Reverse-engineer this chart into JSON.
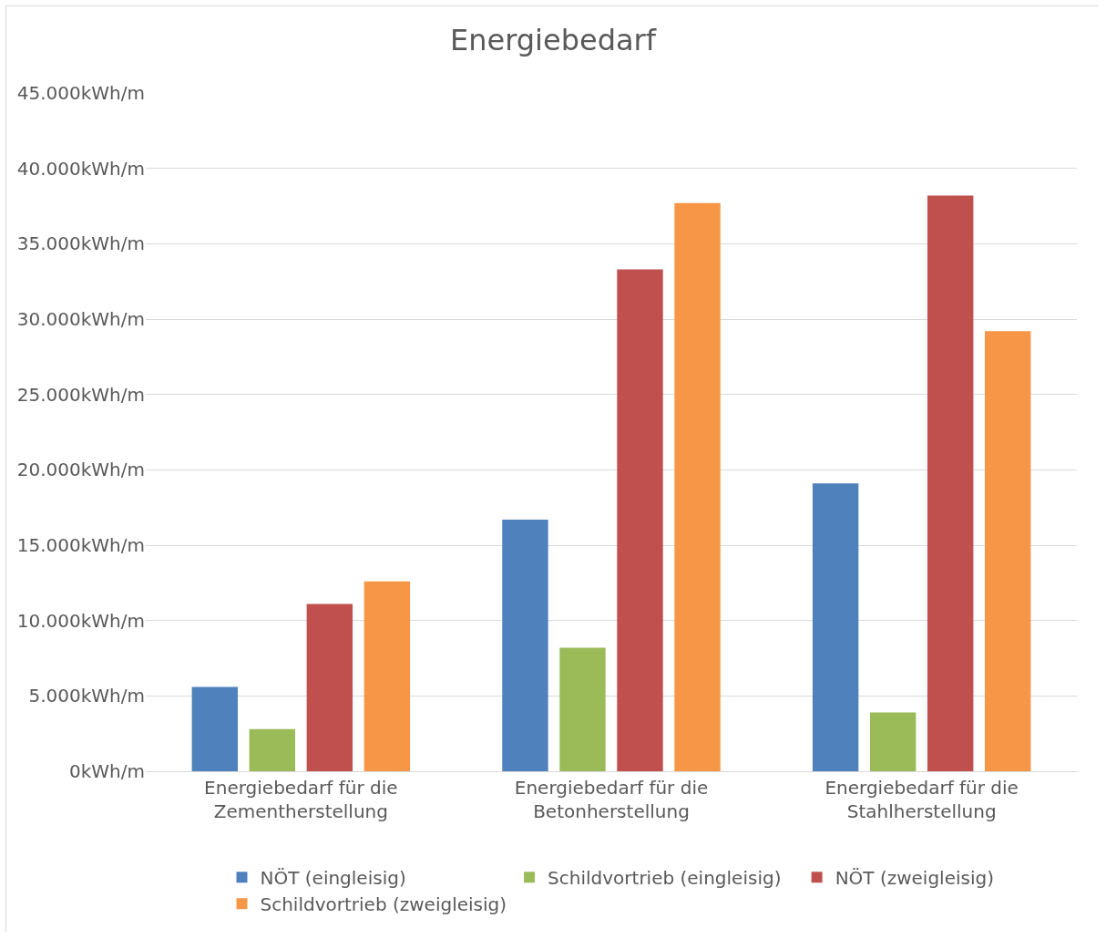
{
  "chart_data": {
    "type": "bar",
    "title": "Energiebedarf",
    "categories": [
      "Energiebedarf für die Zementherstellung",
      "Energiebedarf für die Betonherstellung",
      "Energiebedarf für die Stahlherstellung"
    ],
    "series": [
      {
        "name": "NÖT (eingleisig)",
        "color": "#4f81bd",
        "values": [
          5600,
          16700,
          19100
        ]
      },
      {
        "name": "Schildvortrieb (eingleisig)",
        "color": "#9bbb59",
        "values": [
          2800,
          8200,
          3900
        ]
      },
      {
        "name": "NÖT (zweigleisig)",
        "color": "#c0504d",
        "values": [
          11100,
          33300,
          38200
        ]
      },
      {
        "name": "Schildvortrieb (zweigleisig)",
        "color": "#f79646",
        "values": [
          12600,
          37700,
          29200
        ]
      }
    ],
    "ylim": [
      0,
      45000
    ],
    "yticks": [
      {
        "value": 0,
        "label": "0kWh/m"
      },
      {
        "value": 5000,
        "label": "5.000kWh/m"
      },
      {
        "value": 10000,
        "label": "10.000kWh/m"
      },
      {
        "value": 15000,
        "label": "15.000kWh/m"
      },
      {
        "value": 20000,
        "label": "20.000kWh/m"
      },
      {
        "value": 25000,
        "label": "25.000kWh/m"
      },
      {
        "value": 30000,
        "label": "30.000kWh/m"
      },
      {
        "value": 35000,
        "label": "35.000kWh/m"
      },
      {
        "value": 40000,
        "label": "40.000kWh/m"
      },
      {
        "value": 45000,
        "label": "45.000kWh/m"
      }
    ],
    "grid": "y",
    "legend": "bottom"
  }
}
